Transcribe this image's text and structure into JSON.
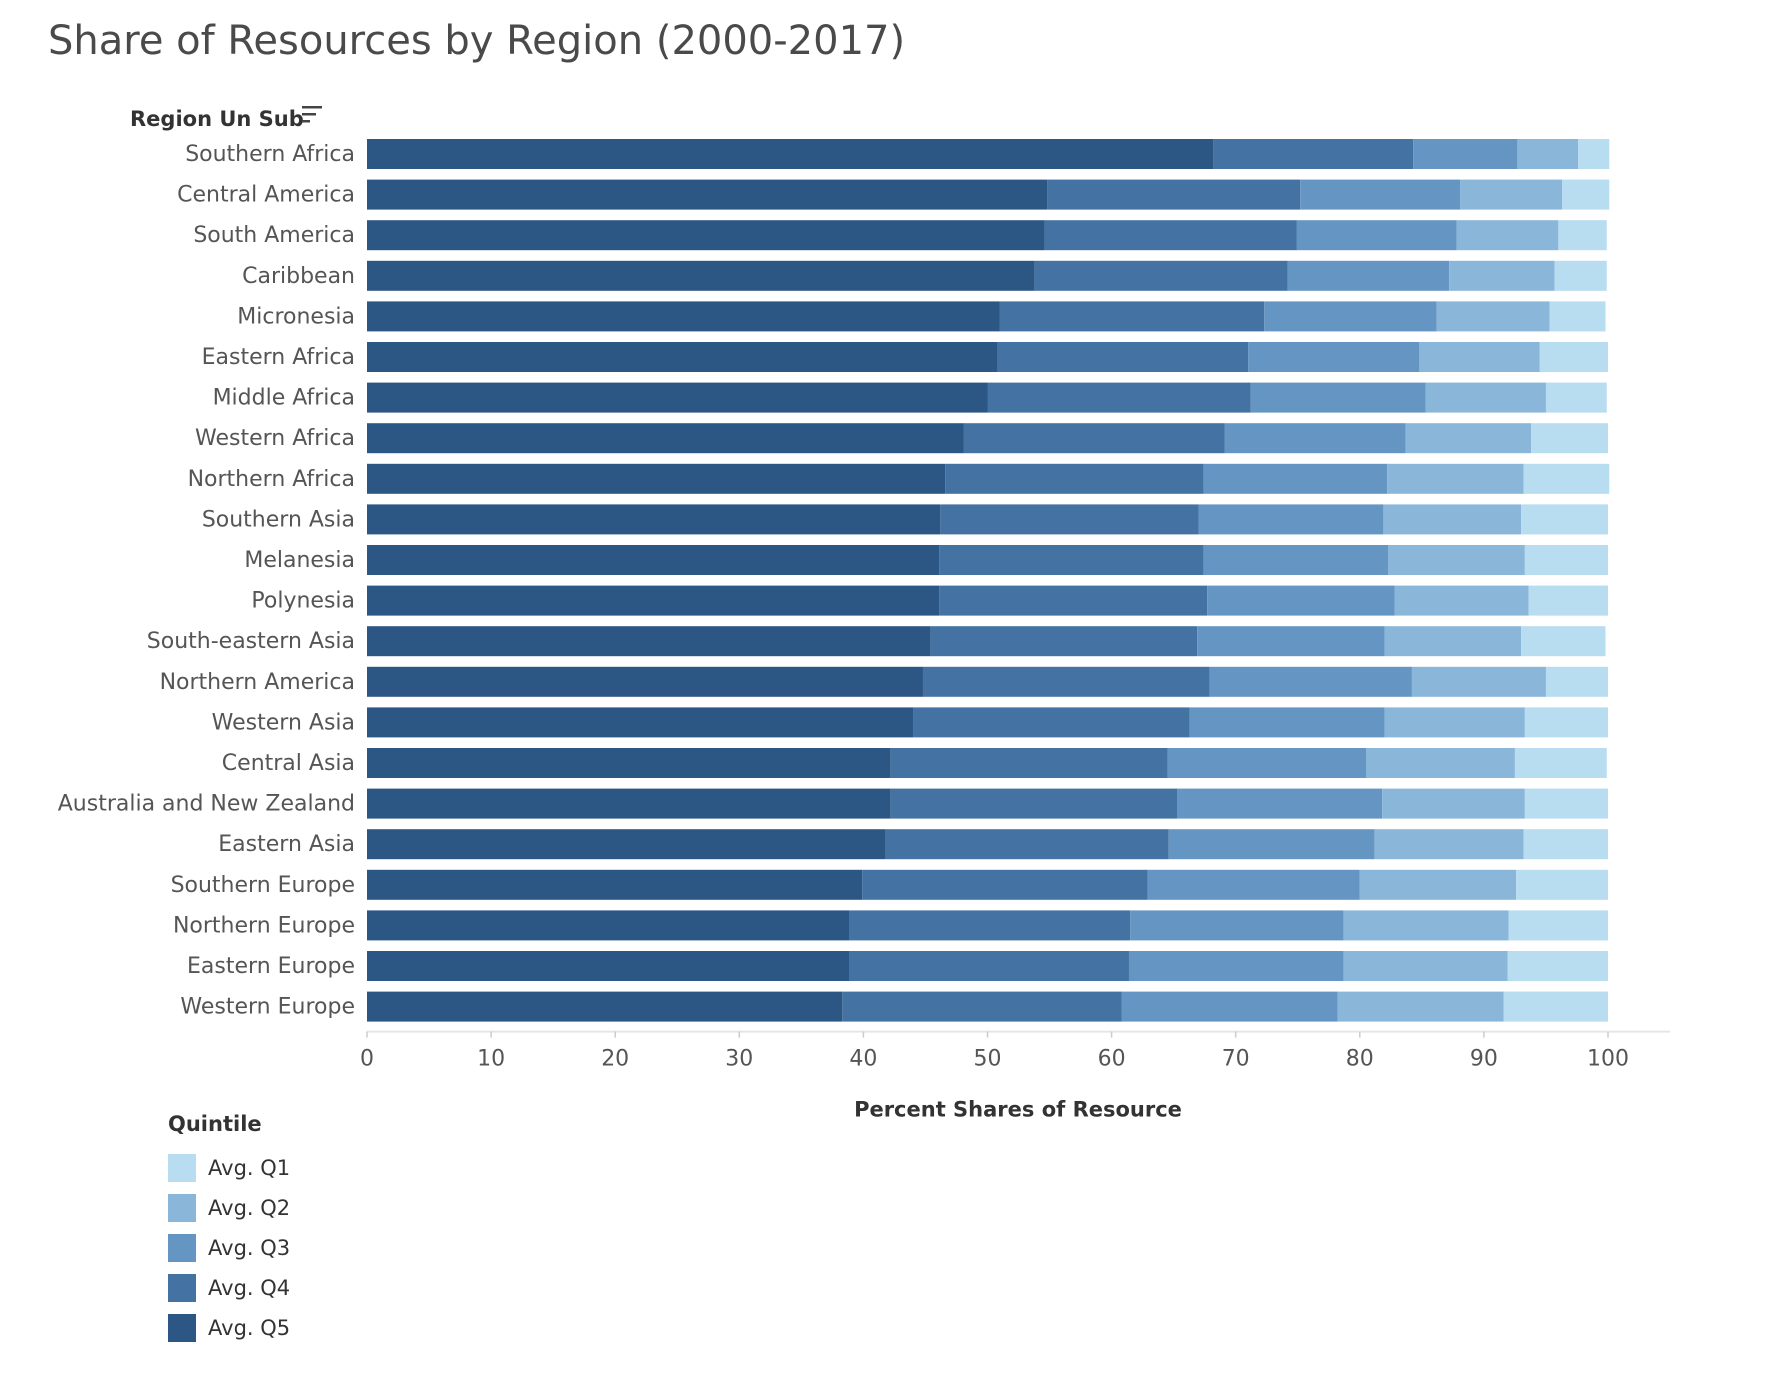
{
  "chart_data": {
    "type": "bar",
    "orientation": "horizontal",
    "stacked": true,
    "title": "Share of Resources by Region (2000-2017)",
    "ylabel": "Region Un Sub",
    "xlabel": "Percent Shares of Resource",
    "xlim": [
      0,
      100
    ],
    "xticks": [
      0,
      10,
      20,
      30,
      40,
      50,
      60,
      70,
      80,
      90,
      100
    ],
    "legend_title": "Quintile",
    "legend_position": "bottom-left",
    "grid": false,
    "categories": [
      "Southern Africa",
      "Central America",
      "South America",
      "Caribbean",
      "Micronesia",
      "Eastern Africa",
      "Middle Africa",
      "Western Africa",
      "Northern Africa",
      "Southern Asia",
      "Melanesia",
      "Polynesia",
      "South-eastern Asia",
      "Northern America",
      "Western Asia",
      "Central Asia",
      "Australia and New Zealand",
      "Eastern Asia",
      "Southern Europe",
      "Northern Europe",
      "Eastern Europe",
      "Western Europe"
    ],
    "series": [
      {
        "name": "Avg. Q5",
        "color": "#2c5784",
        "values": [
          68.2,
          54.8,
          54.6,
          53.8,
          51.0,
          50.8,
          50.0,
          48.1,
          46.6,
          46.2,
          46.1,
          46.1,
          45.4,
          44.8,
          44.0,
          42.2,
          42.2,
          41.8,
          39.9,
          38.9,
          38.9,
          38.3
        ]
      },
      {
        "name": "Avg. Q4",
        "color": "#4472a2",
        "values": [
          16.1,
          20.4,
          20.3,
          20.4,
          21.3,
          20.2,
          21.2,
          21.0,
          20.8,
          20.8,
          21.3,
          21.6,
          21.5,
          23.1,
          22.3,
          22.3,
          23.1,
          22.8,
          23.0,
          22.6,
          22.5,
          22.5
        ]
      },
      {
        "name": "Avg. Q3",
        "color": "#6595c2",
        "values": [
          8.4,
          12.9,
          12.9,
          13.0,
          13.9,
          13.8,
          14.1,
          14.6,
          14.8,
          14.9,
          14.9,
          15.1,
          15.1,
          16.3,
          15.7,
          16.0,
          16.5,
          16.6,
          17.1,
          17.2,
          17.3,
          17.4
        ]
      },
      {
        "name": "Avg. Q2",
        "color": "#8ab6da",
        "values": [
          4.9,
          8.2,
          8.2,
          8.5,
          9.1,
          9.7,
          9.7,
          10.1,
          11.0,
          11.1,
          11.0,
          10.8,
          11.0,
          10.8,
          11.3,
          12.0,
          11.5,
          12.0,
          12.6,
          13.3,
          13.2,
          13.4
        ]
      },
      {
        "name": "Avg. Q1",
        "color": "#b8dcf0",
        "values": [
          2.5,
          3.8,
          3.9,
          4.2,
          4.5,
          5.5,
          4.9,
          6.2,
          6.9,
          7.0,
          6.7,
          6.4,
          6.8,
          5.0,
          6.7,
          7.4,
          6.7,
          6.8,
          7.4,
          8.0,
          8.1,
          8.4
        ]
      }
    ],
    "legend_order": [
      "Avg. Q1",
      "Avg. Q2",
      "Avg. Q3",
      "Avg. Q4",
      "Avg. Q5"
    ]
  }
}
